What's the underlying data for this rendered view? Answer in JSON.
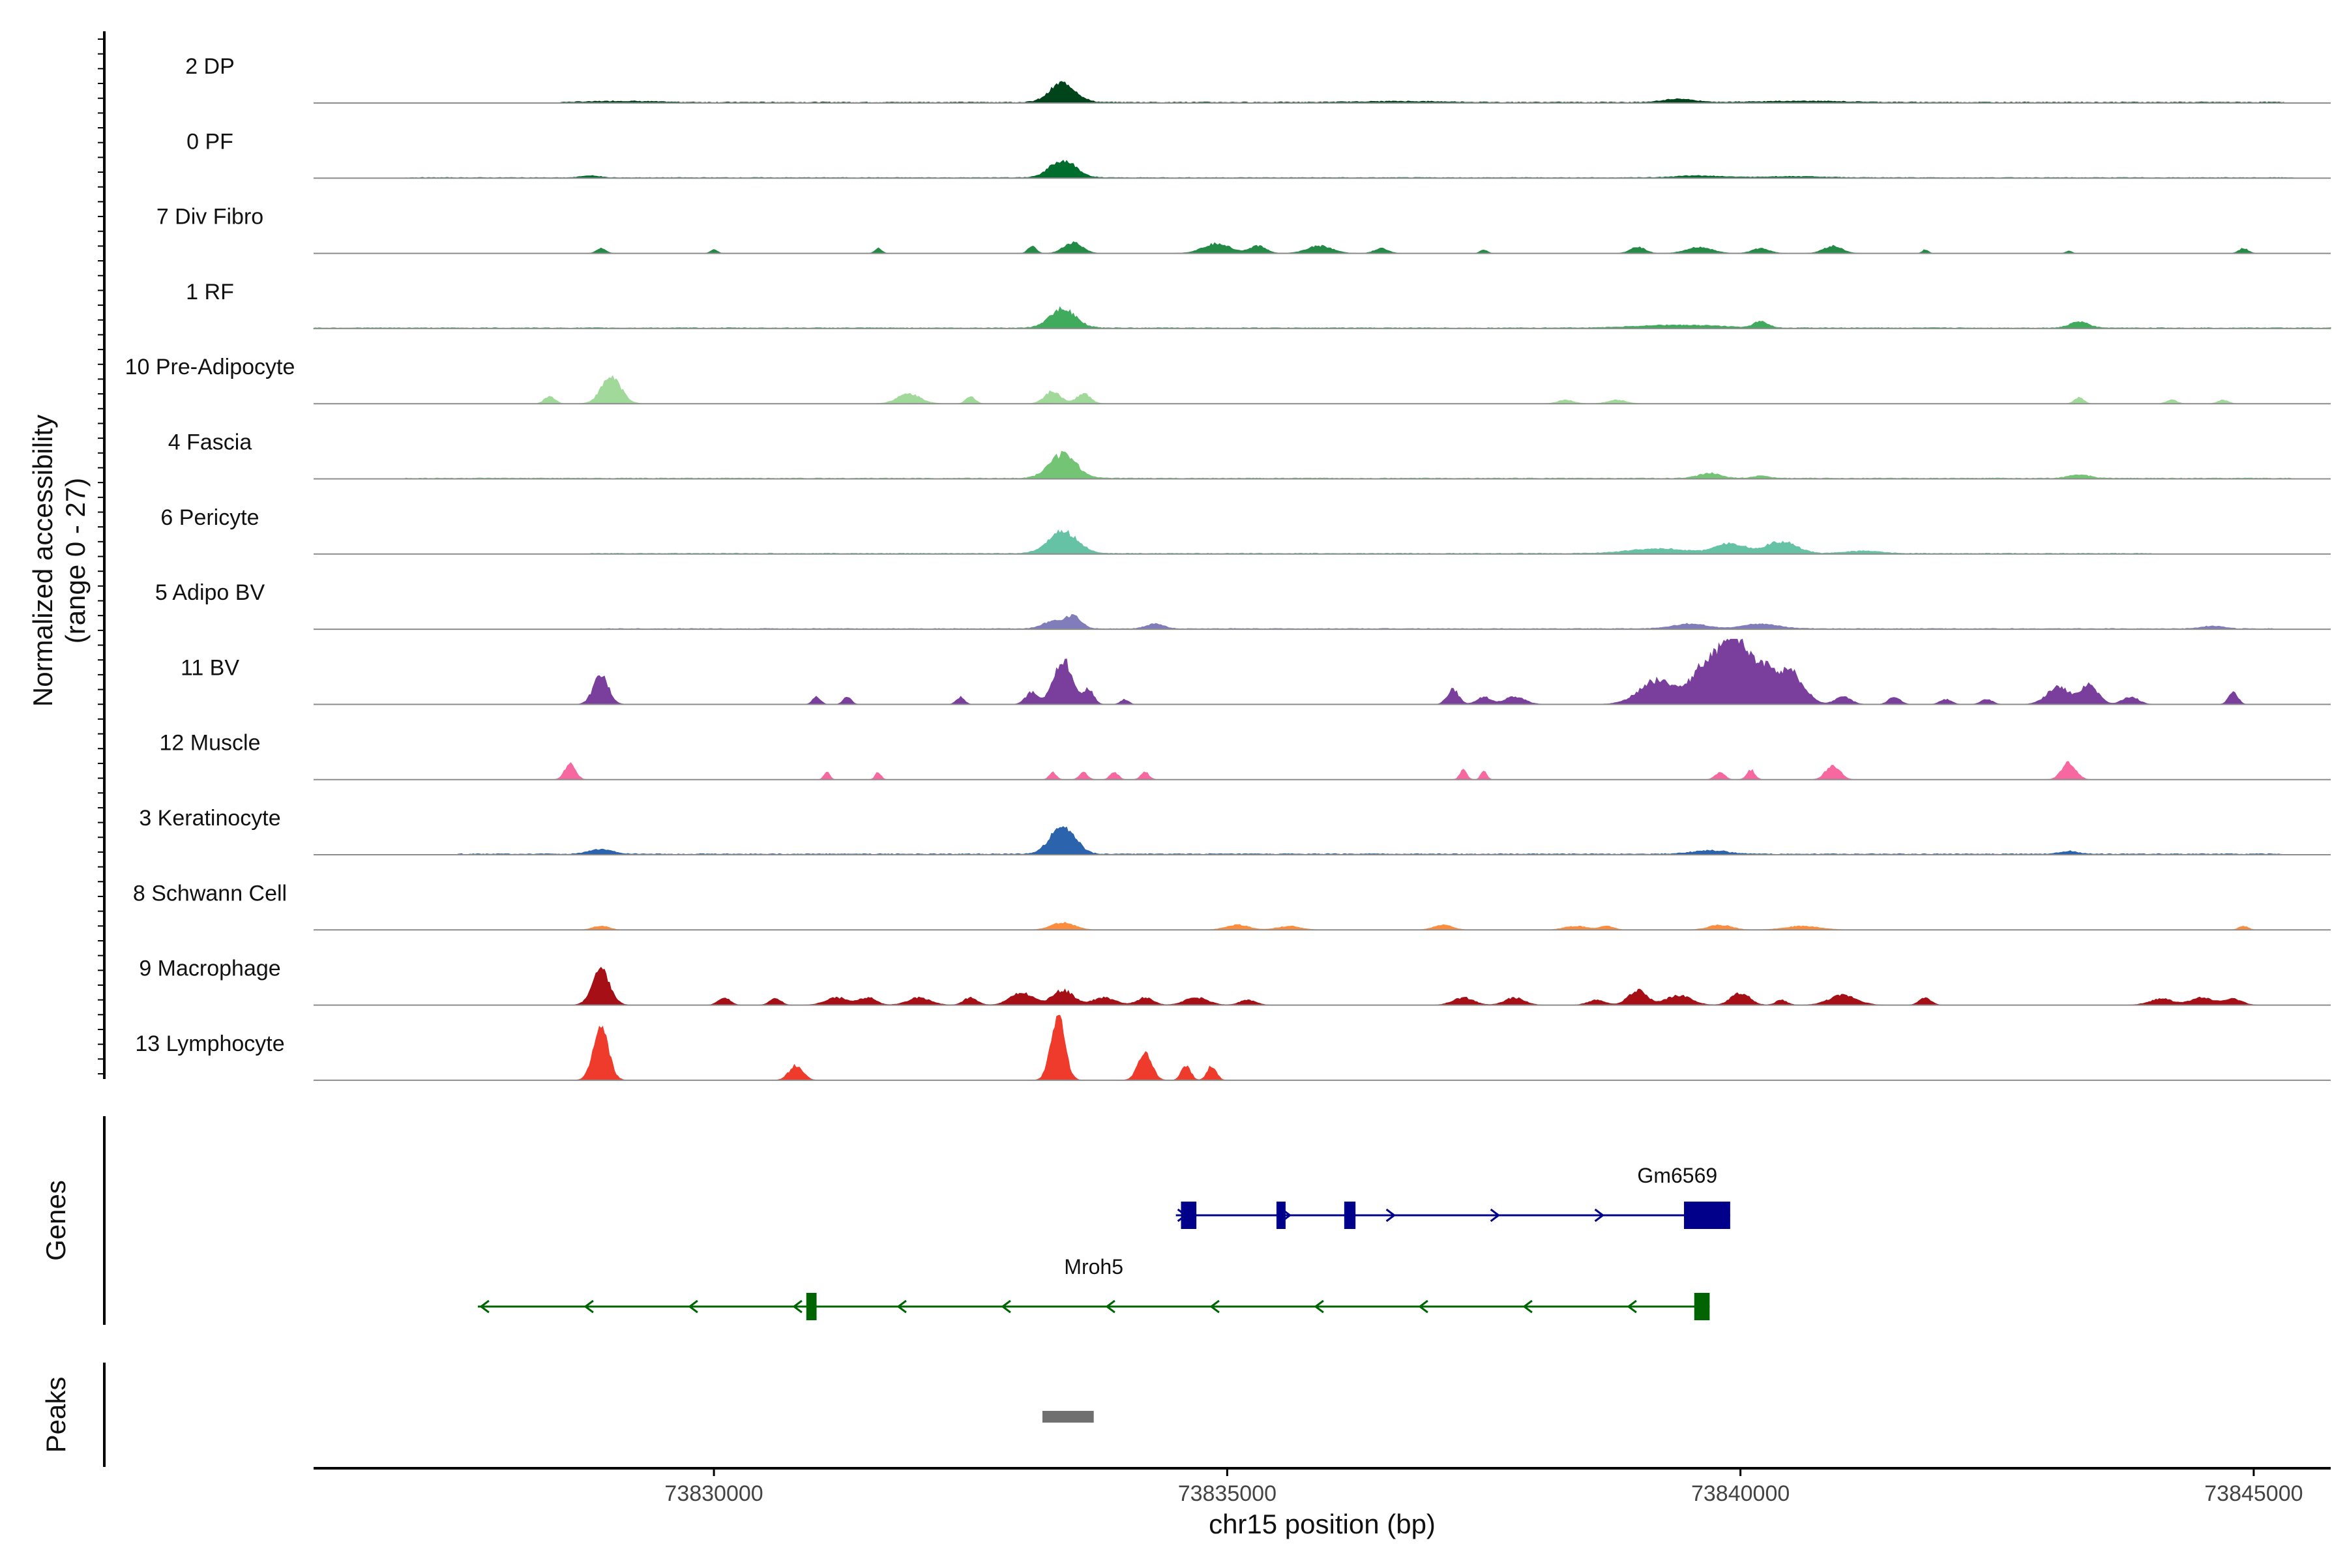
{
  "chart_data": {
    "type": "area",
    "title": "",
    "ylabel_line1": "Normalized accessibility",
    "ylabel_line2": "(range 0 - 27)",
    "y_range": [
      0,
      27
    ],
    "xlabel": "chr15 position (bp)",
    "xlim": [
      73826100,
      73845750
    ],
    "xticks": [
      73830000,
      73835000,
      73840000,
      73845000
    ],
    "xtick_labels": [
      "73830000",
      "73835000",
      "73840000",
      "73845000"
    ],
    "tracks": [
      {
        "name": "2 DP",
        "color": "#00441b",
        "peaks": [
          [
            73829100,
            0.5,
            500
          ],
          [
            73833400,
            8,
            220
          ],
          [
            73836700,
            0.4,
            700
          ],
          [
            73839400,
            1.4,
            260
          ],
          [
            73840600,
            0.5,
            700
          ]
        ],
        "noise": [
          [
            73828500,
            73845300,
            0.35
          ]
        ]
      },
      {
        "name": "0 PF",
        "color": "#006d2c",
        "peaks": [
          [
            73828800,
            0.8,
            150
          ],
          [
            73833400,
            7,
            230
          ],
          [
            73839600,
            0.8,
            400
          ],
          [
            73840500,
            0.5,
            500
          ]
        ],
        "noise": [
          [
            73827000,
            73845400,
            0.25
          ]
        ]
      },
      {
        "name": "7 Div Fibro",
        "color": "#238b45",
        "peaks": [
          [
            73828900,
            2,
            80
          ],
          [
            73830000,
            1.5,
            60
          ],
          [
            73831600,
            2,
            60
          ],
          [
            73833100,
            3,
            70
          ],
          [
            73833500,
            4.5,
            160
          ],
          [
            73834900,
            4,
            240
          ],
          [
            73835300,
            3,
            140
          ],
          [
            73835900,
            3,
            220
          ],
          [
            73836500,
            2,
            120
          ],
          [
            73837500,
            1.5,
            60
          ],
          [
            73839000,
            2.5,
            130
          ],
          [
            73839600,
            2.5,
            220
          ],
          [
            73840200,
            2,
            150
          ],
          [
            73840900,
            3,
            160
          ],
          [
            73841800,
            1.5,
            50
          ],
          [
            73843200,
            1,
            50
          ],
          [
            73844900,
            2,
            80
          ]
        ],
        "noise": []
      },
      {
        "name": "1 RF",
        "color": "#41ab5d",
        "peaks": [
          [
            73833400,
            8,
            220
          ],
          [
            73839400,
            1.2,
            700
          ],
          [
            73840200,
            2.5,
            120
          ],
          [
            73843300,
            2.5,
            160
          ]
        ],
        "noise": [
          [
            73826100,
            73845750,
            0.3
          ]
        ]
      },
      {
        "name": "10 Pre-Adipocyte",
        "color": "#a1d99b",
        "peaks": [
          [
            73828400,
            3,
            90
          ],
          [
            73829000,
            11,
            170
          ],
          [
            73831900,
            4,
            200
          ],
          [
            73832500,
            3,
            80
          ],
          [
            73833300,
            5,
            140
          ],
          [
            73833600,
            4,
            120
          ],
          [
            73838300,
            1.5,
            140
          ],
          [
            73838800,
            1.5,
            160
          ],
          [
            73843300,
            2.5,
            80
          ],
          [
            73844200,
            1.5,
            90
          ],
          [
            73844700,
            1.5,
            90
          ]
        ],
        "noise": []
      },
      {
        "name": "4 Fascia",
        "color": "#74c476",
        "peaks": [
          [
            73833400,
            10,
            230
          ],
          [
            73839700,
            2,
            200
          ],
          [
            73840200,
            1,
            140
          ],
          [
            73843300,
            1.5,
            180
          ]
        ],
        "noise": [
          [
            73827000,
            73845400,
            0.3
          ]
        ]
      },
      {
        "name": "6 Pericyte",
        "color": "#66c2a4",
        "peaks": [
          [
            73833400,
            9,
            250
          ],
          [
            73839200,
            2,
            500
          ],
          [
            73839900,
            4,
            260
          ],
          [
            73840400,
            5,
            260
          ],
          [
            73841200,
            1,
            300
          ]
        ],
        "noise": [
          [
            73828800,
            73844000,
            0.3
          ]
        ]
      },
      {
        "name": "5 Adipo BV",
        "color": "#807dba",
        "peaks": [
          [
            73833300,
            3,
            180
          ],
          [
            73833500,
            5,
            140
          ],
          [
            73834300,
            2,
            150
          ],
          [
            73839500,
            2,
            300
          ],
          [
            73840200,
            2,
            300
          ],
          [
            73844600,
            1.2,
            180
          ]
        ],
        "noise": [
          [
            73828900,
            73845200,
            0.25
          ]
        ]
      },
      {
        "name": "11 BV",
        "color": "#7a3e9d",
        "peaks": [
          [
            73828900,
            12,
            130
          ],
          [
            73831000,
            3,
            70
          ],
          [
            73831300,
            3,
            70
          ],
          [
            73832400,
            3,
            70
          ],
          [
            73833100,
            5,
            110
          ],
          [
            73833400,
            18,
            160
          ],
          [
            73833650,
            6,
            90
          ],
          [
            73834000,
            2,
            70
          ],
          [
            73837200,
            6,
            100
          ],
          [
            73837500,
            3,
            120
          ],
          [
            73837800,
            3,
            180
          ],
          [
            73839200,
            10,
            320
          ],
          [
            73839700,
            18,
            260
          ],
          [
            73839950,
            22,
            200
          ],
          [
            73840200,
            15,
            240
          ],
          [
            73840500,
            12,
            220
          ],
          [
            73841000,
            3,
            140
          ],
          [
            73841500,
            3,
            100
          ],
          [
            73842000,
            2,
            100
          ],
          [
            73842400,
            2,
            100
          ],
          [
            73843100,
            7,
            200
          ],
          [
            73843400,
            8,
            150
          ],
          [
            73843800,
            3,
            140
          ],
          [
            73844800,
            5,
            80
          ]
        ],
        "noise": []
      },
      {
        "name": "12 Muscle",
        "color": "#f768a1",
        "peaks": [
          [
            73828600,
            7,
            90
          ],
          [
            73831100,
            3,
            50
          ],
          [
            73831600,
            3,
            50
          ],
          [
            73833300,
            3,
            60
          ],
          [
            73833600,
            3,
            70
          ],
          [
            73833900,
            3,
            70
          ],
          [
            73834200,
            3,
            70
          ],
          [
            73837300,
            4,
            60
          ],
          [
            73837500,
            4,
            50
          ],
          [
            73839800,
            3,
            80
          ],
          [
            73840100,
            4,
            70
          ],
          [
            73840900,
            6,
            120
          ],
          [
            73843200,
            7,
            120
          ]
        ],
        "noise": []
      },
      {
        "name": "3 Keratinocyte",
        "color": "#2c63ad",
        "peaks": [
          [
            73828900,
            2,
            200
          ],
          [
            73833400,
            12,
            210
          ],
          [
            73839700,
            1.5,
            300
          ],
          [
            73843200,
            1.2,
            150
          ]
        ],
        "noise": [
          [
            73827500,
            73845300,
            0.35
          ]
        ]
      },
      {
        "name": "8 Schwann Cell",
        "color": "#fd8d3c",
        "peaks": [
          [
            73828900,
            1.5,
            140
          ],
          [
            73833400,
            3,
            200
          ],
          [
            73835100,
            2,
            200
          ],
          [
            73835600,
            1.5,
            200
          ],
          [
            73837100,
            2,
            160
          ],
          [
            73838400,
            1.5,
            200
          ],
          [
            73838700,
            1.5,
            120
          ],
          [
            73839800,
            2,
            200
          ],
          [
            73840600,
            1.5,
            300
          ],
          [
            73844900,
            1.5,
            80
          ]
        ],
        "noise": []
      },
      {
        "name": "9 Macrophage",
        "color": "#a50f15",
        "peaks": [
          [
            73828900,
            14,
            150
          ],
          [
            73830100,
            3,
            100
          ],
          [
            73830600,
            2.5,
            100
          ],
          [
            73831200,
            3,
            200
          ],
          [
            73831500,
            3,
            140
          ],
          [
            73832000,
            3,
            200
          ],
          [
            73832500,
            3,
            120
          ],
          [
            73833000,
            5,
            200
          ],
          [
            73833400,
            6,
            180
          ],
          [
            73833800,
            3,
            200
          ],
          [
            73834200,
            3,
            140
          ],
          [
            73834700,
            3,
            200
          ],
          [
            73835200,
            2,
            140
          ],
          [
            73837300,
            3,
            180
          ],
          [
            73837800,
            3,
            170
          ],
          [
            73838600,
            2,
            150
          ],
          [
            73839000,
            6,
            160
          ],
          [
            73839400,
            4,
            220
          ],
          [
            73840000,
            5,
            160
          ],
          [
            73840400,
            2,
            100
          ],
          [
            73841000,
            4,
            240
          ],
          [
            73841800,
            3,
            100
          ],
          [
            73844100,
            2.5,
            200
          ],
          [
            73844500,
            3,
            200
          ],
          [
            73844800,
            2.5,
            150
          ]
        ],
        "noise": []
      },
      {
        "name": "13 Lymphocyte",
        "color": "#ef3b2c",
        "peaks": [
          [
            73828900,
            21,
            130
          ],
          [
            73830800,
            6,
            120
          ],
          [
            73833350,
            27,
            120
          ],
          [
            73834200,
            11,
            120
          ],
          [
            73834600,
            6,
            80
          ],
          [
            73834850,
            6,
            80
          ]
        ],
        "noise": []
      }
    ],
    "genes": [
      {
        "name": "Gm6569",
        "strand": "+",
        "color": "#00008b",
        "start": 73834500,
        "end": 73839900,
        "exons": [
          [
            73834550,
            73834700,
            "small"
          ],
          [
            73835480,
            73835560,
            "small"
          ],
          [
            73836140,
            73836250,
            "small"
          ],
          [
            73839450,
            73839900,
            "large"
          ]
        ]
      },
      {
        "name": "Mroh5",
        "strand": "-",
        "color": "#006400",
        "start": 73827700,
        "end": 73839700,
        "exons": [
          [
            73830900,
            73831000,
            "small"
          ],
          [
            73839550,
            73839700,
            "small"
          ]
        ]
      }
    ],
    "genes_title": "Genes",
    "peaks_title": "Peaks",
    "peak_regions": [
      [
        73833200,
        73833700
      ]
    ],
    "peak_color": "#707070"
  }
}
